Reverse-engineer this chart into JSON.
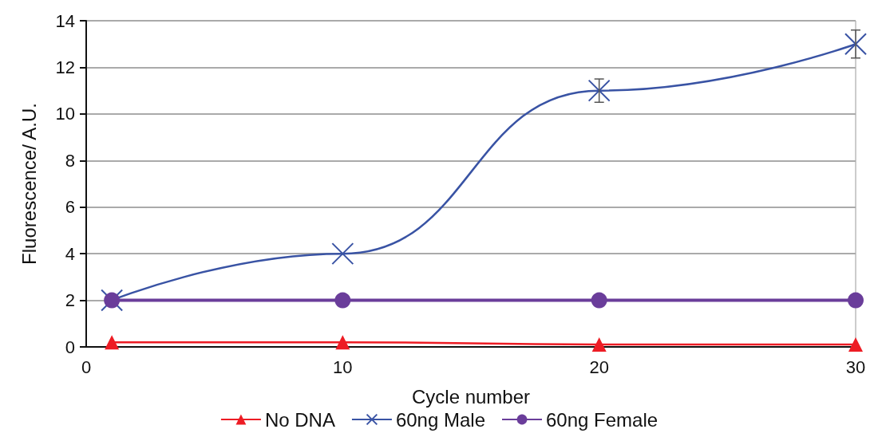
{
  "chart_data": {
    "type": "line",
    "xlabel": "Cycle number",
    "ylabel": "Fluorescence/ A.U.",
    "x": [
      1,
      10,
      20,
      30
    ],
    "series": [
      {
        "name": "No DNA",
        "color": "#ed1c24",
        "marker": "triangle",
        "values": [
          0.2,
          0.2,
          0.1,
          0.1
        ]
      },
      {
        "name": "60ng Male",
        "color": "#3953a4",
        "marker": "cross",
        "values": [
          2,
          4,
          11,
          13
        ],
        "errors": [
          null,
          null,
          0.5,
          0.6
        ]
      },
      {
        "name": "60ng Female",
        "color": "#6a3d9a",
        "marker": "circle",
        "values": [
          2,
          2,
          2,
          2
        ]
      }
    ],
    "xlim": [
      0,
      30
    ],
    "xticks": [
      0,
      10,
      20,
      30
    ],
    "ylim": [
      0,
      14
    ],
    "yticks": [
      0,
      2,
      4,
      6,
      8,
      10,
      12,
      14
    ],
    "grid": "y",
    "legend": "bottom"
  }
}
